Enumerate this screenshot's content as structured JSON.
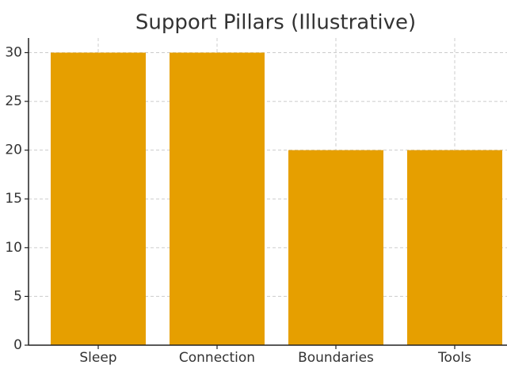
{
  "chart_data": {
    "type": "bar",
    "title": "Support Pillars (Illustrative)",
    "categories": [
      "Sleep",
      "Connection",
      "Boundaries",
      "Tools"
    ],
    "values": [
      30,
      30,
      20,
      20
    ],
    "color": "#e69f00",
    "ylim": [
      0,
      31.5
    ],
    "yticks": [
      0,
      5,
      10,
      15,
      20,
      25,
      30
    ],
    "grid": true
  }
}
